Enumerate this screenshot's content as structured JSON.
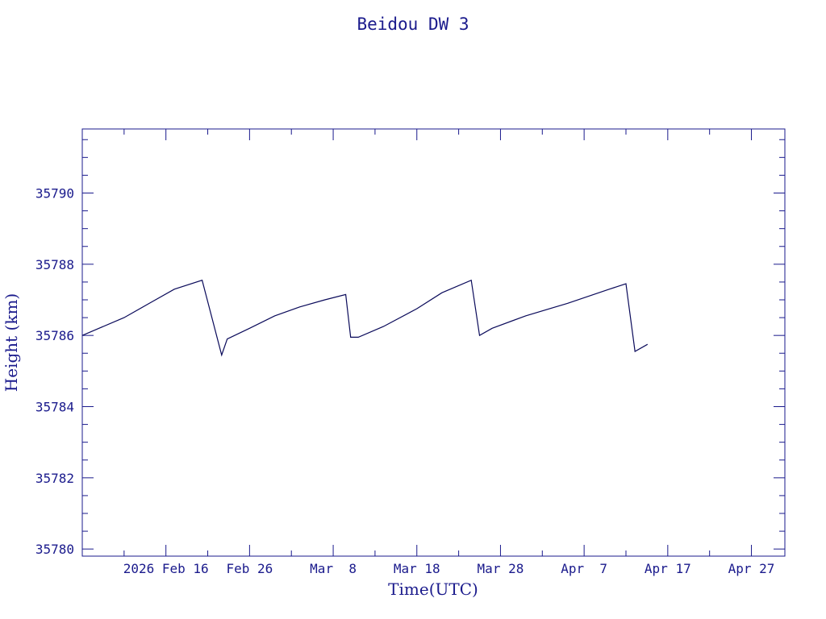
{
  "colors": {
    "foreground": "#1a1a8c",
    "series": "#0a0a5a",
    "background": "#ffffff"
  },
  "chart_data": {
    "type": "line",
    "title": "Beidou DW 3",
    "xlabel": "Time(UTC)",
    "ylabel": "Height (km)",
    "x_unit": "days",
    "xlim": [
      "2026-02-06",
      "2026-05-01"
    ],
    "ylim": [
      35779.8,
      35791.8
    ],
    "x_ticks": [
      {
        "date": "2026-02-16",
        "label": "2026 Feb 16"
      },
      {
        "date": "2026-02-26",
        "label": "Feb 26"
      },
      {
        "date": "2026-03-08",
        "label": "Mar  8"
      },
      {
        "date": "2026-03-18",
        "label": "Mar 18"
      },
      {
        "date": "2026-03-28",
        "label": "Mar 28"
      },
      {
        "date": "2026-04-07",
        "label": "Apr  7"
      },
      {
        "date": "2026-04-17",
        "label": "Apr 17"
      },
      {
        "date": "2026-04-27",
        "label": "Apr 27"
      }
    ],
    "y_ticks": [
      35780,
      35782,
      35784,
      35786,
      35788,
      35790
    ],
    "grid": false,
    "series": [
      {
        "points": [
          [
            "2026-02-06T00:00",
            35786.0
          ],
          [
            "2026-02-08T00:00",
            35786.2
          ],
          [
            "2026-02-11T00:00",
            35786.5
          ],
          [
            "2026-02-14T00:00",
            35786.9
          ],
          [
            "2026-02-17T00:00",
            35787.3
          ],
          [
            "2026-02-20T08:00",
            35787.55
          ],
          [
            "2026-02-22T16:00",
            35785.45
          ],
          [
            "2026-02-23T08:00",
            35785.9
          ],
          [
            "2026-02-26T00:00",
            35786.2
          ],
          [
            "2026-03-01T00:00",
            35786.55
          ],
          [
            "2026-03-04T00:00",
            35786.8
          ],
          [
            "2026-03-07T00:00",
            35787.0
          ],
          [
            "2026-03-09T12:00",
            35787.15
          ],
          [
            "2026-03-10T02:00",
            35785.95
          ],
          [
            "2026-03-11T00:00",
            35785.95
          ],
          [
            "2026-03-14T00:00",
            35786.25
          ],
          [
            "2026-03-18T00:00",
            35786.75
          ],
          [
            "2026-03-21T00:00",
            35787.2
          ],
          [
            "2026-03-24T12:00",
            35787.55
          ],
          [
            "2026-03-25T12:00",
            35786.0
          ],
          [
            "2026-03-27T00:00",
            35786.2
          ],
          [
            "2026-03-31T00:00",
            35786.55
          ],
          [
            "2026-04-05T00:00",
            35786.9
          ],
          [
            "2026-04-10T00:00",
            35787.3
          ],
          [
            "2026-04-12T00:00",
            35787.45
          ],
          [
            "2026-04-13T02:00",
            35785.55
          ],
          [
            "2026-04-14T14:00",
            35785.75
          ]
        ]
      }
    ]
  }
}
